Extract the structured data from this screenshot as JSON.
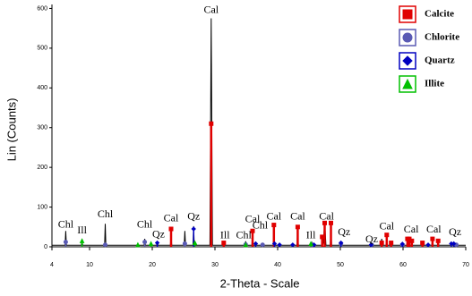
{
  "chart_data": {
    "type": "xrd",
    "x_label": "2-Theta - Scale",
    "y_label": "Lin (Counts)",
    "xlim": [
      4,
      70
    ],
    "ylim": [
      0,
      610
    ],
    "xticks": [
      4,
      10,
      20,
      30,
      40,
      50,
      60,
      70
    ],
    "yticks": [
      0,
      100,
      200,
      300,
      400,
      500,
      600
    ],
    "pattern": {
      "color": "#000000",
      "x": [
        4,
        6.1,
        6.2,
        6.3,
        8.7,
        8.8,
        8.9,
        12.4,
        12.5,
        12.6,
        18.7,
        18.8,
        18.9,
        20.7,
        20.8,
        20.9,
        22.9,
        23.0,
        23.1,
        25.1,
        25.2,
        25.3,
        26.5,
        26.6,
        26.7,
        29.2,
        29.4,
        29.6,
        31.3,
        31.4,
        31.5,
        34.8,
        34.9,
        35.0,
        35.9,
        36.0,
        36.1,
        39.3,
        39.4,
        39.5,
        43.1,
        43.2,
        43.3,
        45.4,
        45.5,
        45.6,
        47.0,
        47.1,
        47.3,
        47.5,
        47.7,
        48.4,
        48.5,
        48.6,
        50.0,
        50.1,
        50.2,
        56.5,
        56.6,
        56.7,
        57.3,
        57.4,
        57.5,
        60.6,
        60.7,
        60.8,
        64.6,
        64.7,
        64.8,
        68.0,
        68.1,
        68.2,
        70
      ],
      "y": [
        4,
        4,
        40,
        4,
        4,
        15,
        4,
        4,
        58,
        4,
        4,
        20,
        4,
        4,
        14,
        4,
        4,
        30,
        4,
        4,
        40,
        4,
        4,
        52,
        4,
        4,
        575,
        4,
        4,
        12,
        4,
        4,
        14,
        4,
        4,
        40,
        4,
        4,
        55,
        4,
        4,
        55,
        4,
        4,
        10,
        4,
        4,
        30,
        8,
        65,
        4,
        4,
        60,
        4,
        4,
        12,
        4,
        4,
        20,
        4,
        4,
        30,
        4,
        4,
        20,
        4,
        4,
        25,
        4,
        4,
        10,
        4,
        4
      ]
    },
    "phases": [
      {
        "name": "Calcite",
        "color": "#e00000",
        "marker": "square",
        "x": [
          23.0,
          29.4,
          31.4,
          36.0,
          39.4,
          43.2,
          47.1,
          47.5,
          48.5,
          56.6,
          57.4,
          58.1,
          60.7,
          61.0,
          61.4,
          63.1,
          64.7,
          65.6
        ],
        "values": [
          45,
          310,
          10,
          40,
          55,
          50,
          25,
          60,
          60,
          10,
          30,
          10,
          20,
          20,
          15,
          10,
          20,
          15
        ]
      },
      {
        "name": "Chlorite",
        "color": "#5a5ab4",
        "marker": "circle",
        "x": [
          6.2,
          12.5,
          18.8,
          25.2,
          34.9,
          37.6,
          45.5,
          50.1,
          55.0,
          59.9,
          68.5
        ],
        "values": [
          12,
          5,
          12,
          8,
          6,
          5,
          5,
          8,
          5,
          5,
          5
        ]
      },
      {
        "name": "Quartz",
        "color": "#0000c0",
        "marker": "diamond",
        "x": [
          20.8,
          26.6,
          36.5,
          39.5,
          40.3,
          42.4,
          45.8,
          50.1,
          54.9,
          59.9,
          64.0,
          67.7,
          68.1
        ],
        "values": [
          10,
          45,
          8,
          8,
          5,
          5,
          5,
          10,
          5,
          7,
          5,
          8,
          8
        ]
      },
      {
        "name": "Illite",
        "color": "#00c000",
        "marker": "triangle",
        "x": [
          8.8,
          17.7,
          19.8,
          26.8,
          34.9,
          45.3
        ],
        "values": [
          15,
          5,
          8,
          10,
          5,
          8
        ]
      }
    ],
    "annotations": [
      {
        "text": "Chl",
        "x": 6.2,
        "y": 55
      },
      {
        "text": "Ill",
        "x": 8.8,
        "y": 40
      },
      {
        "text": "Chl",
        "x": 12.5,
        "y": 80
      },
      {
        "text": "Chl",
        "x": 18.8,
        "y": 55
      },
      {
        "text": "Qz",
        "x": 21.0,
        "y": 30
      },
      {
        "text": "Cal",
        "x": 23.0,
        "y": 70
      },
      {
        "text": "Qz",
        "x": 26.6,
        "y": 75
      },
      {
        "text": "Cal",
        "x": 29.4,
        "y": 595
      },
      {
        "text": "Ill",
        "x": 31.6,
        "y": 28
      },
      {
        "text": "Chl",
        "x": 34.6,
        "y": 28
      },
      {
        "text": "Cal",
        "x": 36.0,
        "y": 68
      },
      {
        "text": "Chl",
        "x": 37.2,
        "y": 52
      },
      {
        "text": "Cal",
        "x": 39.4,
        "y": 75
      },
      {
        "text": "Cal",
        "x": 43.2,
        "y": 75
      },
      {
        "text": "Ill",
        "x": 45.3,
        "y": 28
      },
      {
        "text": "Cal",
        "x": 47.8,
        "y": 75
      },
      {
        "text": "Qz",
        "x": 50.6,
        "y": 35
      },
      {
        "text": "Qz",
        "x": 55.0,
        "y": 18
      },
      {
        "text": "Cal",
        "x": 57.4,
        "y": 50
      },
      {
        "text": "Cal",
        "x": 61.3,
        "y": 42
      },
      {
        "text": "Cal",
        "x": 64.9,
        "y": 42
      },
      {
        "text": "Qz",
        "x": 68.3,
        "y": 35
      }
    ]
  }
}
